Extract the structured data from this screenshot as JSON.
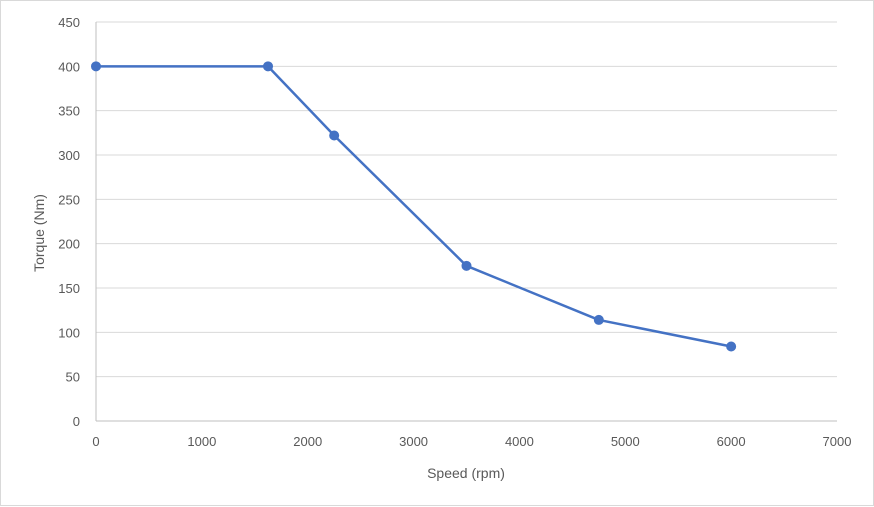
{
  "chart_data": {
    "type": "line",
    "title": "",
    "xlabel": "Speed (rpm)",
    "ylabel": "Torque (Nm)",
    "xlim": [
      0,
      7000
    ],
    "ylim": [
      0,
      450
    ],
    "x_ticks": [
      0,
      1000,
      2000,
      3000,
      4000,
      5000,
      6000,
      7000
    ],
    "y_ticks": [
      0,
      50,
      100,
      150,
      200,
      250,
      300,
      350,
      400,
      450
    ],
    "grid": "horizontal",
    "legend": "none",
    "series": [
      {
        "color": "#4472c4",
        "marker": "circle",
        "points": [
          {
            "x": 0,
            "y": 400
          },
          {
            "x": 1625,
            "y": 400
          },
          {
            "x": 2250,
            "y": 322
          },
          {
            "x": 3500,
            "y": 175
          },
          {
            "x": 4750,
            "y": 114
          },
          {
            "x": 6000,
            "y": 84
          }
        ]
      }
    ]
  }
}
